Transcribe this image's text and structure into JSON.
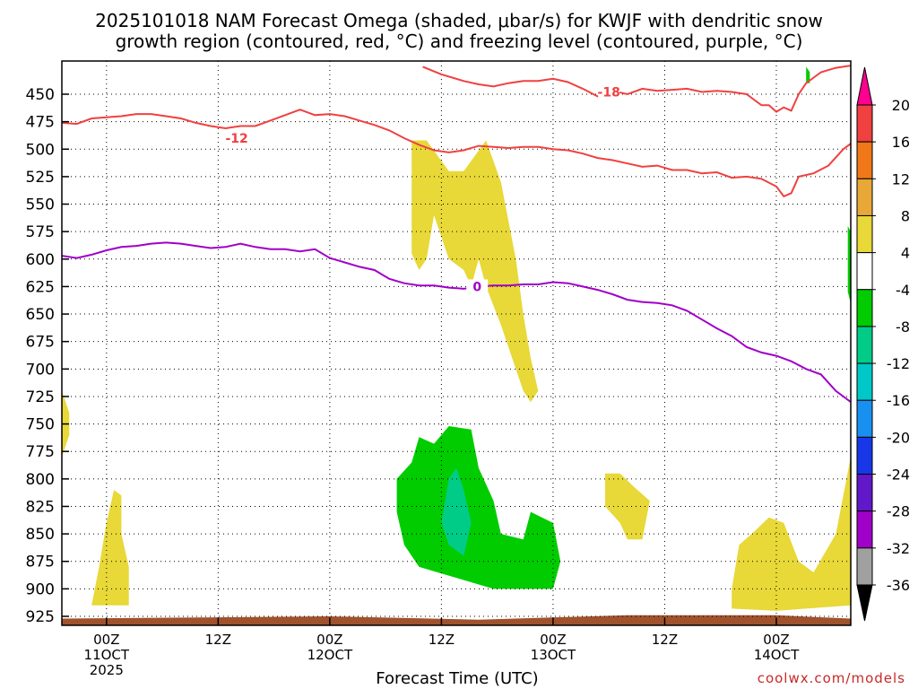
{
  "title": {
    "line1": "2025101018 NAM Forecast Omega (shaded, μbar/s) for KWJF with dendritic snow",
    "line2": "growth region (contoured, red, °C) and freezing level (contoured, purple, °C)"
  },
  "credit": "coolwx.com/models",
  "chart_data": {
    "type": "time-height",
    "title": "2025101018 NAM Forecast Omega (shaded, μbar/s) for KWJF with dendritic snow growth region (contoured, red, °C) and freezing level (contoured, purple, °C)",
    "xlabel": "Forecast Time (UTC)",
    "ylabel": "",
    "xlim": [
      -6,
      100
    ],
    "ylim": [
      425,
      930
    ],
    "y_ticks": [
      450,
      475,
      500,
      525,
      550,
      575,
      600,
      625,
      650,
      675,
      700,
      725,
      750,
      775,
      800,
      825,
      850,
      875,
      900,
      925
    ],
    "x_ticks": [
      {
        "hour": 0,
        "label": "00Z",
        "label2": "11OCT",
        "label3": "2025"
      },
      {
        "hour": 15,
        "label": "12Z",
        "label2": "",
        "label3": ""
      },
      {
        "hour": 30,
        "label": "00Z",
        "label2": "12OCT",
        "label3": ""
      },
      {
        "hour": 45,
        "label": "12Z",
        "label2": "",
        "label3": ""
      },
      {
        "hour": 60,
        "label": "00Z",
        "label2": "13OCT",
        "label3": ""
      },
      {
        "hour": 75,
        "label": "12Z",
        "label2": "",
        "label3": ""
      },
      {
        "hour": 90,
        "label": "00Z",
        "label2": "14OCT",
        "label3": ""
      }
    ],
    "colorbar": {
      "labels": [
        "20",
        "16",
        "12",
        "8",
        "4",
        "-4",
        "-8",
        "-12",
        "-16",
        "-20",
        "-24",
        "-28",
        "-32",
        "-36"
      ],
      "colors": [
        "#ff0090",
        "#f04040",
        "#f07818",
        "#e8a838",
        "#e8d838",
        "#ffffff",
        "#00cc00",
        "#00cc88",
        "#00c8c8",
        "#1890f0",
        "#1838e8",
        "#6018c8",
        "#a000c8",
        "#a0a0a0",
        "#000000"
      ]
    },
    "shaded_regions": [
      {
        "name": "ascent-column",
        "value_range": "4 to 8",
        "color": "#e8d838",
        "points": [
          [
            41,
            492
          ],
          [
            43,
            492
          ],
          [
            46,
            520
          ],
          [
            48,
            520
          ],
          [
            51,
            492
          ],
          [
            53,
            530
          ],
          [
            55,
            600
          ],
          [
            56,
            650
          ],
          [
            57,
            690
          ],
          [
            58,
            720
          ],
          [
            57,
            730
          ],
          [
            56,
            720
          ],
          [
            55,
            700
          ],
          [
            53,
            660
          ],
          [
            51,
            625
          ],
          [
            50,
            600
          ],
          [
            49,
            625
          ],
          [
            48,
            610
          ],
          [
            46,
            600
          ],
          [
            45,
            580
          ],
          [
            44,
            560
          ],
          [
            43,
            600
          ],
          [
            42,
            610
          ],
          [
            41,
            595
          ],
          [
            41,
            540
          ]
        ]
      },
      {
        "name": "low-left",
        "value_range": "4 to 8",
        "color": "#e8d838",
        "points": [
          [
            -6,
            720
          ],
          [
            -5,
            740
          ],
          [
            -5,
            760
          ],
          [
            -6,
            780
          ]
        ]
      },
      {
        "name": "low-left-2",
        "value_range": "4 to 8",
        "color": "#e8d838",
        "points": [
          [
            -2,
            915
          ],
          [
            -1,
            880
          ],
          [
            0,
            840
          ],
          [
            1,
            810
          ],
          [
            2,
            815
          ],
          [
            2,
            850
          ],
          [
            3,
            880
          ],
          [
            3,
            915
          ]
        ]
      },
      {
        "name": "mid-patch",
        "value_range": "4 to 8",
        "color": "#e8d838",
        "points": [
          [
            67,
            795
          ],
          [
            69,
            795
          ],
          [
            71,
            808
          ],
          [
            73,
            820
          ],
          [
            72,
            855
          ],
          [
            70,
            855
          ],
          [
            69,
            840
          ],
          [
            67,
            825
          ]
        ]
      },
      {
        "name": "right-patch",
        "value_range": "4 to 8",
        "color": "#e8d838",
        "points": [
          [
            84,
            900
          ],
          [
            85,
            860
          ],
          [
            87,
            848
          ],
          [
            89,
            835
          ],
          [
            91,
            840
          ],
          [
            93,
            875
          ],
          [
            95,
            885
          ],
          [
            98,
            850
          ],
          [
            100,
            780
          ],
          [
            100,
            915
          ],
          [
            90,
            920
          ],
          [
            84,
            918
          ]
        ]
      },
      {
        "name": "descent-area",
        "value_range": "-4 to -8",
        "color": "#00cc00",
        "points": [
          [
            39,
            800
          ],
          [
            41,
            785
          ],
          [
            42,
            762
          ],
          [
            44,
            768
          ],
          [
            46,
            752
          ],
          [
            49,
            755
          ],
          [
            50,
            790
          ],
          [
            52,
            820
          ],
          [
            53,
            850
          ],
          [
            56,
            855
          ],
          [
            57,
            830
          ],
          [
            60,
            840
          ],
          [
            61,
            875
          ],
          [
            60,
            900
          ],
          [
            57,
            900
          ],
          [
            52,
            900
          ],
          [
            47,
            890
          ],
          [
            42,
            880
          ],
          [
            40,
            860
          ],
          [
            39,
            830
          ]
        ]
      },
      {
        "name": "descent-core",
        "value_range": "-8 to -12",
        "color": "#00cc88",
        "points": [
          [
            46,
            800
          ],
          [
            47,
            790
          ],
          [
            48,
            810
          ],
          [
            49,
            840
          ],
          [
            48,
            870
          ],
          [
            46,
            860
          ],
          [
            45,
            840
          ]
        ]
      },
      {
        "name": "upper-right-small",
        "value_range": "-4 to -8",
        "color": "#00cc00",
        "points": [
          [
            94,
            425
          ],
          [
            94.5,
            430
          ],
          [
            94.5,
            440
          ],
          [
            94,
            440
          ]
        ]
      },
      {
        "name": "right-edge",
        "value_range": "-4 to -8",
        "color": "#00cc00",
        "points": [
          [
            99.6,
            570
          ],
          [
            100,
            575
          ],
          [
            100,
            640
          ],
          [
            99.6,
            630
          ]
        ]
      }
    ],
    "series": [
      {
        "name": "-18 °C isotherm",
        "color": "#f04040",
        "label": "-18",
        "label_at": [
          67.5,
          448
        ],
        "points": [
          [
            42.5,
            425
          ],
          [
            45,
            432
          ],
          [
            48,
            438
          ],
          [
            50,
            441
          ],
          [
            52,
            443
          ],
          [
            54,
            440
          ],
          [
            56,
            438
          ],
          [
            58,
            438
          ],
          [
            60,
            436
          ],
          [
            62,
            439
          ],
          [
            64,
            445
          ],
          [
            66,
            452
          ],
          [
            67,
            451
          ],
          [
            68,
            447
          ],
          [
            70,
            450
          ],
          [
            72,
            445
          ],
          [
            74,
            447
          ],
          [
            76,
            446
          ],
          [
            78,
            445
          ],
          [
            80,
            448
          ],
          [
            82,
            447
          ],
          [
            84,
            448
          ],
          [
            86,
            450
          ],
          [
            88,
            460
          ],
          [
            89,
            460
          ],
          [
            90,
            466
          ],
          [
            91,
            462
          ],
          [
            92,
            465
          ],
          [
            93,
            450
          ],
          [
            94,
            440
          ],
          [
            96,
            430
          ],
          [
            98,
            426
          ],
          [
            100,
            424
          ]
        ]
      },
      {
        "name": "-12 °C isotherm (upper)",
        "color": "#f04040",
        "label": "-12",
        "label_at": [
          17.5,
          490
        ],
        "points": [
          [
            -6,
            476
          ],
          [
            -4,
            477
          ],
          [
            -2,
            472
          ],
          [
            0,
            471
          ],
          [
            2,
            470
          ],
          [
            4,
            468
          ],
          [
            6,
            468
          ],
          [
            8,
            470
          ],
          [
            10,
            472
          ],
          [
            12,
            476
          ],
          [
            14,
            479
          ],
          [
            16,
            481
          ],
          [
            18,
            479
          ],
          [
            20,
            479
          ],
          [
            22,
            474
          ],
          [
            24,
            469
          ],
          [
            26,
            464
          ],
          [
            28,
            469
          ],
          [
            30,
            468
          ],
          [
            32,
            470
          ],
          [
            34,
            474
          ],
          [
            36,
            478
          ],
          [
            38,
            483
          ],
          [
            40,
            490
          ],
          [
            42,
            496
          ],
          [
            44,
            501
          ],
          [
            46,
            503
          ],
          [
            48,
            501
          ],
          [
            50,
            497
          ],
          [
            52,
            498
          ],
          [
            54,
            499
          ],
          [
            56,
            498
          ],
          [
            58,
            498
          ],
          [
            60,
            500
          ],
          [
            62,
            501
          ],
          [
            64,
            504
          ],
          [
            66,
            508
          ],
          [
            68,
            510
          ],
          [
            70,
            513
          ],
          [
            72,
            516
          ],
          [
            74,
            515
          ],
          [
            76,
            519
          ],
          [
            78,
            519
          ],
          [
            80,
            522
          ],
          [
            82,
            521
          ],
          [
            84,
            526
          ],
          [
            86,
            525
          ],
          [
            88,
            527
          ],
          [
            90,
            534
          ],
          [
            91,
            543
          ],
          [
            92,
            540
          ],
          [
            93,
            525
          ],
          [
            95,
            522
          ],
          [
            97,
            515
          ],
          [
            99,
            500
          ],
          [
            100,
            495
          ]
        ]
      },
      {
        "name": "0 °C freezing level",
        "color": "#a000c8",
        "label": "0",
        "label_at": [
          49.8,
          625
        ],
        "points": [
          [
            -6,
            597
          ],
          [
            -4,
            599
          ],
          [
            -2,
            596
          ],
          [
            0,
            592
          ],
          [
            2,
            589
          ],
          [
            4,
            588
          ],
          [
            6,
            586
          ],
          [
            8,
            585
          ],
          [
            10,
            586
          ],
          [
            12,
            588
          ],
          [
            14,
            590
          ],
          [
            16,
            589
          ],
          [
            18,
            586
          ],
          [
            20,
            589
          ],
          [
            22,
            591
          ],
          [
            24,
            591
          ],
          [
            26,
            593
          ],
          [
            28,
            591
          ],
          [
            30,
            599
          ],
          [
            32,
            603
          ],
          [
            34,
            607
          ],
          [
            36,
            610
          ],
          [
            38,
            618
          ],
          [
            40,
            622
          ],
          [
            42,
            624
          ],
          [
            44,
            624
          ],
          [
            46,
            626
          ],
          [
            48,
            627
          ],
          [
            50,
            625
          ],
          [
            52,
            624
          ],
          [
            54,
            624
          ],
          [
            56,
            623
          ],
          [
            58,
            623
          ],
          [
            60,
            621
          ],
          [
            62,
            622
          ],
          [
            64,
            625
          ],
          [
            66,
            628
          ],
          [
            68,
            632
          ],
          [
            70,
            637
          ],
          [
            72,
            639
          ],
          [
            74,
            640
          ],
          [
            76,
            642
          ],
          [
            78,
            647
          ],
          [
            80,
            655
          ],
          [
            82,
            663
          ],
          [
            84,
            670
          ],
          [
            86,
            680
          ],
          [
            88,
            685
          ],
          [
            90,
            688
          ],
          [
            92,
            693
          ],
          [
            94,
            700
          ],
          [
            96,
            705
          ],
          [
            98,
            720
          ],
          [
            100,
            730
          ]
        ]
      }
    ],
    "ground": {
      "color": "#a0522d",
      "description": "terrain below 925 hPa",
      "pressure": [
        927,
        925,
        927
      ]
    }
  }
}
